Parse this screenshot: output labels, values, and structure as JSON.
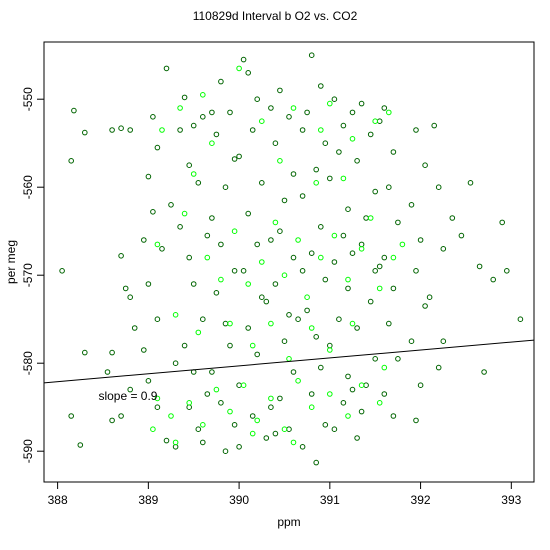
{
  "chart_data": {
    "type": "scatter",
    "title": "110829d   Interval b O2 vs. CO2",
    "xlabel": "ppm",
    "ylabel": "per meg",
    "xlim": [
      387.85,
      393.25
    ],
    "ylim": [
      -593.5,
      -543.5
    ],
    "xticks": [
      {
        "value": 388,
        "label": "388"
      },
      {
        "value": 389,
        "label": "389"
      },
      {
        "value": 390,
        "label": "390"
      },
      {
        "value": 391,
        "label": "391"
      },
      {
        "value": 392,
        "label": "392"
      },
      {
        "value": 393,
        "label": "393"
      }
    ],
    "yticks": [
      {
        "value": -550,
        "label": "-550"
      },
      {
        "value": -560,
        "label": "-560"
      },
      {
        "value": -570,
        "label": "-570"
      },
      {
        "value": -580,
        "label": "-580"
      },
      {
        "value": -590,
        "label": "-590"
      }
    ],
    "grid": false,
    "legend": "none",
    "colors": {
      "dark_points": "#006400",
      "bright_points": "#00ff00",
      "fit_line": "#000000"
    },
    "fit_line": {
      "slope": 0.9,
      "intercept": -931.3
    },
    "annotation": {
      "text": "slope =  0.9",
      "x": 388.45,
      "y": -584.2
    },
    "series": [
      {
        "marker": "open-circle",
        "color": "#006400",
        "points": [
          [
            388.05,
            -569.5
          ],
          [
            388.18,
            -551.3
          ],
          [
            388.15,
            -557.0
          ],
          [
            388.3,
            -553.8
          ],
          [
            388.3,
            -578.8
          ],
          [
            388.25,
            -589.3
          ],
          [
            388.15,
            -586.0
          ],
          [
            388.6,
            -553.5
          ],
          [
            388.7,
            -553.3
          ],
          [
            388.8,
            -553.5
          ],
          [
            388.7,
            -567.8
          ],
          [
            388.75,
            -571.5
          ],
          [
            388.8,
            -572.5
          ],
          [
            388.85,
            -576.0
          ],
          [
            388.6,
            -578.8
          ],
          [
            388.55,
            -581.0
          ],
          [
            388.8,
            -583.0
          ],
          [
            388.7,
            -586.0
          ],
          [
            388.6,
            -586.5
          ],
          [
            389.05,
            -552.0
          ],
          [
            389.2,
            -546.5
          ],
          [
            389.1,
            -555.5
          ],
          [
            389.0,
            -558.8
          ],
          [
            389.05,
            -562.8
          ],
          [
            389.15,
            -567.0
          ],
          [
            388.95,
            -566.0
          ],
          [
            389.0,
            -571.0
          ],
          [
            389.1,
            -575.0
          ],
          [
            388.95,
            -578.5
          ],
          [
            389.0,
            -582.0
          ],
          [
            389.1,
            -585.0
          ],
          [
            389.2,
            -588.8
          ],
          [
            389.3,
            -589.5
          ],
          [
            389.4,
            -549.8
          ],
          [
            389.5,
            -553.0
          ],
          [
            389.6,
            -552.0
          ],
          [
            389.45,
            -557.5
          ],
          [
            389.55,
            -559.5
          ],
          [
            389.35,
            -564.5
          ],
          [
            389.45,
            -568.0
          ],
          [
            389.5,
            -571.0
          ],
          [
            389.6,
            -575.0
          ],
          [
            389.4,
            -578.0
          ],
          [
            389.5,
            -581.0
          ],
          [
            389.45,
            -585.0
          ],
          [
            389.55,
            -587.5
          ],
          [
            389.8,
            -548.0
          ],
          [
            389.9,
            -551.5
          ],
          [
            389.75,
            -554.0
          ],
          [
            389.95,
            -556.8
          ],
          [
            389.85,
            -560.0
          ],
          [
            389.7,
            -563.5
          ],
          [
            389.8,
            -566.5
          ],
          [
            389.95,
            -569.5
          ],
          [
            389.75,
            -572.0
          ],
          [
            389.85,
            -575.5
          ],
          [
            389.9,
            -578.0
          ],
          [
            389.7,
            -581.0
          ],
          [
            389.8,
            -584.5
          ],
          [
            389.95,
            -587.0
          ],
          [
            389.85,
            -590.0
          ],
          [
            390.05,
            -545.5
          ],
          [
            390.1,
            -547.0
          ],
          [
            390.2,
            -550.0
          ],
          [
            390.15,
            -553.5
          ],
          [
            390.0,
            -556.5
          ],
          [
            390.25,
            -559.5
          ],
          [
            390.1,
            -563.0
          ],
          [
            390.2,
            -566.5
          ],
          [
            390.05,
            -569.5
          ],
          [
            390.25,
            -572.5
          ],
          [
            390.1,
            -576.0
          ],
          [
            390.2,
            -579.0
          ],
          [
            390.0,
            -582.5
          ],
          [
            390.15,
            -586.0
          ],
          [
            390.3,
            -588.5
          ],
          [
            390.45,
            -549.0
          ],
          [
            390.55,
            -552.0
          ],
          [
            390.4,
            -555.0
          ],
          [
            390.6,
            -558.5
          ],
          [
            390.5,
            -561.5
          ],
          [
            390.45,
            -565.0
          ],
          [
            390.6,
            -568.0
          ],
          [
            390.4,
            -571.0
          ],
          [
            390.55,
            -574.5
          ],
          [
            390.5,
            -577.5
          ],
          [
            390.6,
            -581.0
          ],
          [
            390.45,
            -584.0
          ],
          [
            390.55,
            -587.5
          ],
          [
            390.8,
            -545.0
          ],
          [
            390.9,
            -548.5
          ],
          [
            390.75,
            -551.5
          ],
          [
            390.95,
            -555.0
          ],
          [
            390.85,
            -558.0
          ],
          [
            390.7,
            -561.0
          ],
          [
            390.9,
            -564.5
          ],
          [
            390.8,
            -567.5
          ],
          [
            390.95,
            -570.5
          ],
          [
            390.75,
            -574.0
          ],
          [
            390.85,
            -577.0
          ],
          [
            390.9,
            -580.5
          ],
          [
            390.8,
            -583.5
          ],
          [
            390.95,
            -587.0
          ],
          [
            390.85,
            -591.3
          ],
          [
            391.05,
            -550.0
          ],
          [
            391.15,
            -553.0
          ],
          [
            391.1,
            -556.0
          ],
          [
            391.0,
            -559.0
          ],
          [
            391.2,
            -562.5
          ],
          [
            391.15,
            -565.5
          ],
          [
            391.05,
            -568.5
          ],
          [
            391.2,
            -571.5
          ],
          [
            391.1,
            -575.0
          ],
          [
            391.0,
            -578.0
          ],
          [
            391.2,
            -581.5
          ],
          [
            391.15,
            -584.5
          ],
          [
            391.05,
            -587.5
          ],
          [
            391.35,
            -550.5
          ],
          [
            391.45,
            -554.0
          ],
          [
            391.3,
            -557.0
          ],
          [
            391.5,
            -560.5
          ],
          [
            391.4,
            -563.5
          ],
          [
            391.35,
            -566.5
          ],
          [
            391.5,
            -569.5
          ],
          [
            391.45,
            -573.0
          ],
          [
            391.3,
            -576.0
          ],
          [
            391.5,
            -579.5
          ],
          [
            391.4,
            -582.5
          ],
          [
            391.35,
            -585.5
          ],
          [
            391.6,
            -551.0
          ],
          [
            391.7,
            -556.0
          ],
          [
            391.65,
            -560.0
          ],
          [
            391.75,
            -564.0
          ],
          [
            391.6,
            -568.0
          ],
          [
            391.7,
            -571.5
          ],
          [
            391.65,
            -575.5
          ],
          [
            391.75,
            -579.5
          ],
          [
            391.6,
            -583.5
          ],
          [
            391.7,
            -586.0
          ],
          [
            391.95,
            -553.5
          ],
          [
            392.05,
            -557.5
          ],
          [
            391.9,
            -562.0
          ],
          [
            392.0,
            -566.0
          ],
          [
            391.95,
            -569.5
          ],
          [
            392.05,
            -573.5
          ],
          [
            391.9,
            -577.5
          ],
          [
            392.0,
            -582.5
          ],
          [
            391.95,
            -586.5
          ],
          [
            392.15,
            -553.0
          ],
          [
            392.2,
            -560.0
          ],
          [
            392.25,
            -567.0
          ],
          [
            392.1,
            -572.5
          ],
          [
            392.2,
            -580.5
          ],
          [
            392.25,
            -577.5
          ],
          [
            392.55,
            -559.5
          ],
          [
            392.45,
            -565.5
          ],
          [
            392.65,
            -569.0
          ],
          [
            392.8,
            -570.5
          ],
          [
            392.9,
            -564.0
          ],
          [
            392.7,
            -581.0
          ],
          [
            392.95,
            -569.5
          ],
          [
            393.1,
            -575.0
          ],
          [
            392.35,
            -563.5
          ],
          [
            389.25,
            -562.0
          ],
          [
            389.65,
            -565.5
          ],
          [
            390.35,
            -566.0
          ],
          [
            390.7,
            -569.5
          ],
          [
            391.25,
            -567.5
          ],
          [
            391.55,
            -569.0
          ],
          [
            390.3,
            -573.0
          ],
          [
            390.65,
            -575.0
          ],
          [
            389.3,
            -580.0
          ],
          [
            389.65,
            -583.5
          ],
          [
            390.35,
            -585.0
          ],
          [
            391.25,
            -583.0
          ],
          [
            389.35,
            -553.5
          ],
          [
            389.7,
            -551.5
          ],
          [
            390.35,
            -551.0
          ],
          [
            390.7,
            -553.5
          ],
          [
            391.25,
            -551.5
          ],
          [
            391.55,
            -552.5
          ],
          [
            389.6,
            -589.0
          ],
          [
            390.0,
            -589.5
          ],
          [
            390.4,
            -588.0
          ],
          [
            390.7,
            -589.5
          ],
          [
            391.3,
            -588.5
          ]
        ]
      },
      {
        "marker": "open-circle",
        "color": "#00ff00",
        "points": [
          [
            389.15,
            -553.5
          ],
          [
            389.35,
            -551.0
          ],
          [
            389.6,
            -549.5
          ],
          [
            389.7,
            -555.0
          ],
          [
            389.5,
            -558.5
          ],
          [
            390.0,
            -546.5
          ],
          [
            390.25,
            -552.5
          ],
          [
            390.45,
            -557.0
          ],
          [
            390.6,
            -551.0
          ],
          [
            390.9,
            -553.5
          ],
          [
            391.0,
            -550.5
          ],
          [
            391.25,
            -554.5
          ],
          [
            391.5,
            -552.5
          ],
          [
            391.65,
            -551.5
          ],
          [
            390.85,
            -559.5
          ],
          [
            391.15,
            -559.0
          ],
          [
            389.1,
            -566.5
          ],
          [
            389.4,
            -563.0
          ],
          [
            389.65,
            -568.0
          ],
          [
            389.8,
            -570.5
          ],
          [
            389.95,
            -565.0
          ],
          [
            390.1,
            -571.0
          ],
          [
            390.25,
            -568.5
          ],
          [
            390.4,
            -564.0
          ],
          [
            390.5,
            -570.0
          ],
          [
            390.65,
            -566.0
          ],
          [
            390.75,
            -572.5
          ],
          [
            390.9,
            -568.0
          ],
          [
            391.05,
            -565.5
          ],
          [
            391.2,
            -570.5
          ],
          [
            391.35,
            -567.0
          ],
          [
            391.45,
            -563.5
          ],
          [
            391.55,
            -571.5
          ],
          [
            391.7,
            -568.0
          ],
          [
            391.8,
            -566.5
          ],
          [
            389.3,
            -574.5
          ],
          [
            389.55,
            -576.5
          ],
          [
            389.9,
            -575.5
          ],
          [
            390.15,
            -578.0
          ],
          [
            390.35,
            -575.5
          ],
          [
            390.55,
            -579.5
          ],
          [
            390.8,
            -576.0
          ],
          [
            391.0,
            -578.5
          ],
          [
            391.25,
            -575.5
          ],
          [
            389.1,
            -584.0
          ],
          [
            389.25,
            -586.0
          ],
          [
            389.45,
            -584.5
          ],
          [
            389.6,
            -587.0
          ],
          [
            389.75,
            -583.0
          ],
          [
            389.9,
            -585.5
          ],
          [
            390.05,
            -582.5
          ],
          [
            390.2,
            -586.5
          ],
          [
            390.35,
            -584.0
          ],
          [
            390.5,
            -587.5
          ],
          [
            390.65,
            -582.0
          ],
          [
            390.8,
            -585.0
          ],
          [
            391.0,
            -583.5
          ],
          [
            391.2,
            -586.0
          ],
          [
            391.35,
            -582.5
          ],
          [
            391.55,
            -584.5
          ],
          [
            389.3,
            -589.0
          ],
          [
            389.05,
            -587.5
          ],
          [
            390.15,
            -588.0
          ],
          [
            390.6,
            -589.0
          ],
          [
            391.6,
            -580.5
          ]
        ]
      }
    ]
  }
}
